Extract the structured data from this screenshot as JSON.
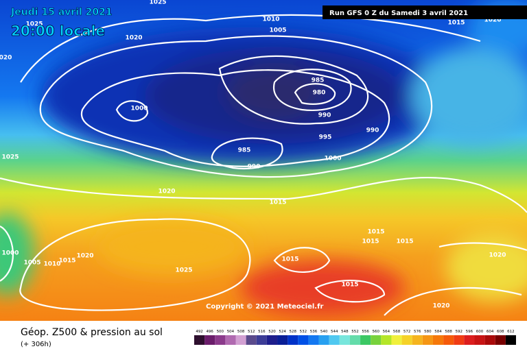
{
  "header": {
    "valid_date": "Jeudi 15 avril 2021",
    "local_time": "20:00 locale",
    "run": "Run GFS 0 Z du Samedi 3 avril 2021"
  },
  "map": {
    "pressure_labels": [
      "1025",
      "1010",
      "1005",
      "1020",
      "1025",
      "020",
      "1000",
      "985",
      "980",
      "990",
      "995",
      "990",
      "985",
      "990",
      "1000",
      "1025",
      "1020",
      "1015",
      "1015",
      "1015",
      "1015",
      "1020",
      "1000",
      "1005",
      "1010",
      "1015",
      "1020",
      "1025",
      "1015",
      "1015",
      "1020",
      "1015",
      "1020"
    ],
    "copyright": "Copyright © 2021 Meteociel.fr"
  },
  "footer": {
    "title": "Géop. Z500 & pression au sol",
    "lead_time": "(+ 306h)",
    "scale": [
      {
        "value": 492,
        "color": "#2e0f2e"
      },
      {
        "value": 496,
        "color": "#6b1d6b"
      },
      {
        "value": 500,
        "color": "#8b3a8b"
      },
      {
        "value": 504,
        "color": "#b06ab0"
      },
      {
        "value": 508,
        "color": "#d2a0d2"
      },
      {
        "value": 512,
        "color": "#5a4a8c"
      },
      {
        "value": 516,
        "color": "#3c3c96"
      },
      {
        "value": 520,
        "color": "#1e1e8c"
      },
      {
        "value": 524,
        "color": "#0a1e96"
      },
      {
        "value": 528,
        "color": "#0032c8"
      },
      {
        "value": 532,
        "color": "#0050e6"
      },
      {
        "value": 536,
        "color": "#1478f0"
      },
      {
        "value": 540,
        "color": "#28a0f0"
      },
      {
        "value": 544,
        "color": "#50c8f0"
      },
      {
        "value": 548,
        "color": "#78e6dc"
      },
      {
        "value": 552,
        "color": "#64dcaa"
      },
      {
        "value": 556,
        "color": "#3cc864"
      },
      {
        "value": 560,
        "color": "#78d23c"
      },
      {
        "value": 564,
        "color": "#b4e628"
      },
      {
        "value": 568,
        "color": "#f0f03c"
      },
      {
        "value": 572,
        "color": "#f5d228"
      },
      {
        "value": 576,
        "color": "#f5b41e"
      },
      {
        "value": 580,
        "color": "#f59614"
      },
      {
        "value": 584,
        "color": "#f5780a"
      },
      {
        "value": 588,
        "color": "#f55a0a"
      },
      {
        "value": 592,
        "color": "#f03c14"
      },
      {
        "value": 596,
        "color": "#dc1e1e"
      },
      {
        "value": 600,
        "color": "#c81414"
      },
      {
        "value": 604,
        "color": "#aa0a0a"
      },
      {
        "value": 608,
        "color": "#780000"
      },
      {
        "value": 612,
        "color": "#000000"
      }
    ]
  }
}
